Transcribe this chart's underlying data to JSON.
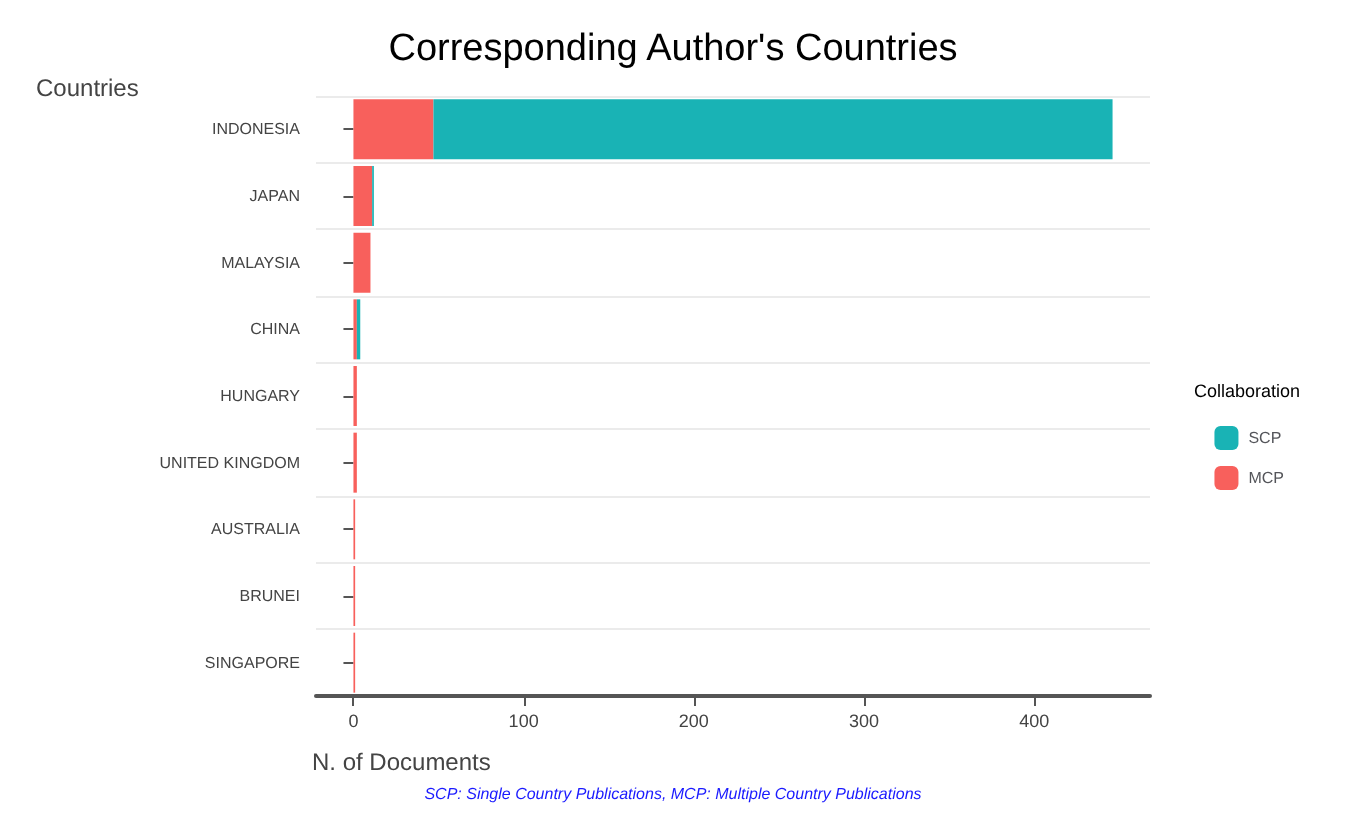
{
  "chart_data": {
    "type": "bar",
    "orientation": "horizontal",
    "stacked": true,
    "title": "Corresponding Author's Countries",
    "xlabel": "N. of Documents",
    "ylabel": "Countries",
    "legend_title": "Collaboration",
    "categories": [
      "INDONESIA",
      "JAPAN",
      "MALAYSIA",
      "CHINA",
      "HUNGARY",
      "UNITED KINGDOM",
      "AUSTRALIA",
      "BRUNEI",
      "SINGAPORE"
    ],
    "series": [
      {
        "name": "MCP",
        "color": "#f8605c",
        "values": [
          47,
          11,
          10,
          2,
          2,
          2,
          1,
          1,
          1
        ]
      },
      {
        "name": "SCP",
        "color": "#19b3b5",
        "values": [
          399,
          1,
          0,
          2,
          0,
          0,
          0,
          0,
          0
        ]
      }
    ],
    "xlim": [
      -22,
      468
    ],
    "xticks": [
      0,
      100,
      200,
      300,
      400
    ],
    "grid": "y",
    "legend": "right",
    "annotations": [
      "SCP: Single Country Publications, MCP: Multiple Country Publications"
    ]
  }
}
